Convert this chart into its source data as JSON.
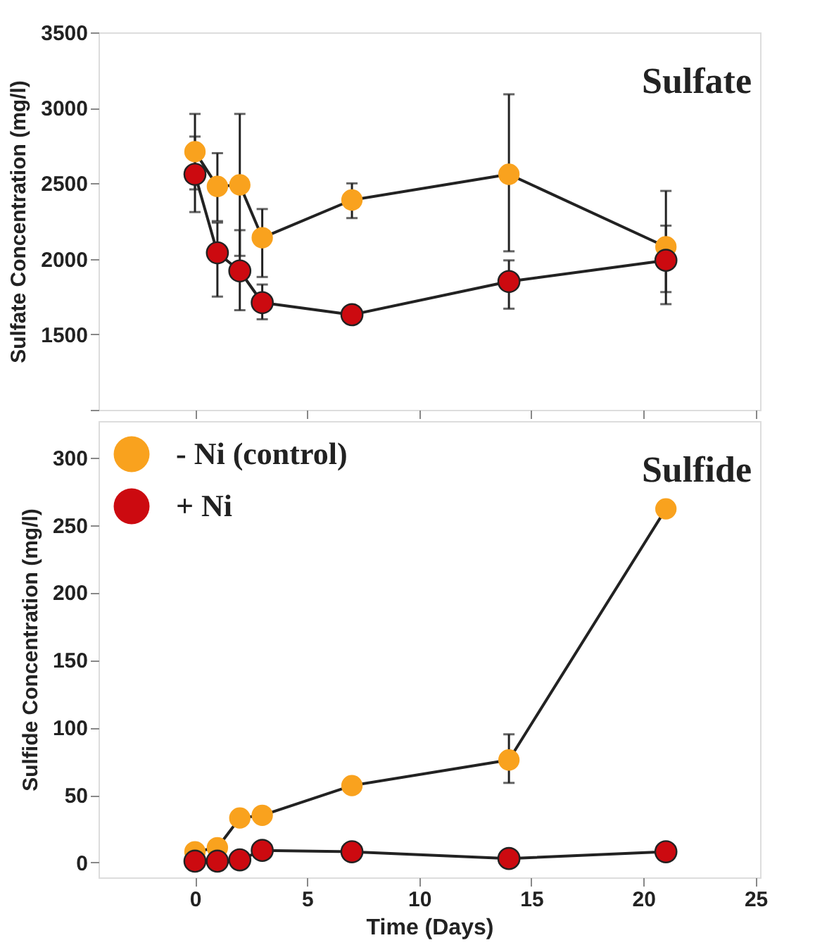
{
  "chart_data": [
    {
      "type": "line",
      "annotations": [
        "Sulfate"
      ],
      "ylabel": "Sulfate Concentration (mg/l)",
      "x": [
        0,
        1,
        2,
        3,
        7,
        14,
        21
      ],
      "xlim": [
        -4.3,
        25.2
      ],
      "xticks": [
        0,
        5,
        10,
        15,
        20,
        25
      ],
      "ylim": [
        1000,
        3500
      ],
      "yticks": [
        {
          "value": 1000,
          "label": null
        },
        1500,
        2000,
        2500,
        3000,
        3500
      ],
      "tick_labels": "y",
      "grid": false,
      "legend": false,
      "marker": "circle",
      "line_style": "solid",
      "series": [
        {
          "color": "#f9a21e",
          "values": [
            2710,
            2480,
            2490,
            2140,
            2390,
            2560,
            2080
          ],
          "errors": [
            [
              2460,
              2960
            ],
            [
              2250,
              2700
            ],
            [
              2020,
              2960
            ],
            [
              1880,
              2330
            ],
            [
              2270,
              2500
            ],
            [
              2050,
              3090
            ],
            [
              1700,
              2450
            ]
          ]
        },
        {
          "color": "#cc0a10",
          "values": [
            2560,
            2040,
            1920,
            1710,
            1630,
            1850,
            1990
          ],
          "errors": [
            [
              2310,
              2810
            ],
            [
              1750,
              2240
            ],
            [
              1660,
              2190
            ],
            [
              1600,
              1830
            ],
            null,
            [
              1670,
              1990
            ],
            [
              1780,
              2220
            ]
          ]
        }
      ]
    },
    {
      "type": "line",
      "annotations": [
        "Sulfide"
      ],
      "xlabel": "Time (Days)",
      "ylabel": "Sulfide Concentration (mg/l)",
      "x": [
        0,
        1,
        2,
        3,
        7,
        14,
        21
      ],
      "xlim": [
        -4.3,
        25.2
      ],
      "xticks": [
        0,
        5,
        10,
        15,
        20,
        25
      ],
      "ylim": [
        -11,
        327
      ],
      "yticks": [
        0,
        50,
        100,
        150,
        200,
        250,
        300
      ],
      "grid": false,
      "legend": "top left",
      "marker": "circle",
      "line_style": "solid",
      "series": [
        {
          "name": "- Ni (control)",
          "color": "#f9a21e",
          "values": [
            8,
            11,
            33,
            35,
            57,
            76,
            262
          ],
          "errors": [
            null,
            null,
            null,
            null,
            null,
            [
              59,
              95
            ],
            null
          ]
        },
        {
          "name": "+ Ni",
          "color": "#cc0a10",
          "values": [
            1,
            1,
            2,
            9,
            8,
            3,
            8
          ]
        }
      ]
    }
  ]
}
